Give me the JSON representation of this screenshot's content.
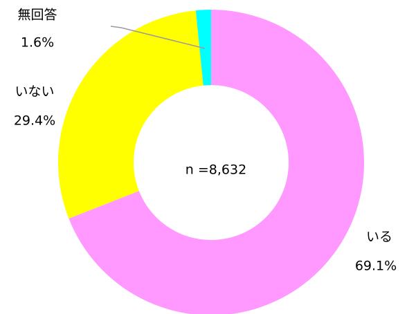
{
  "chart_data": {
    "type": "donut",
    "center_label": "n =8,632",
    "categories": [
      "いる",
      "いない",
      "無回答"
    ],
    "values": [
      69.1,
      29.4,
      1.6
    ],
    "value_labels": [
      "69.1%",
      "29.4%",
      "1.6%"
    ],
    "colors": [
      "#ff99ff",
      "#ffff00",
      "#00ffff"
    ]
  }
}
